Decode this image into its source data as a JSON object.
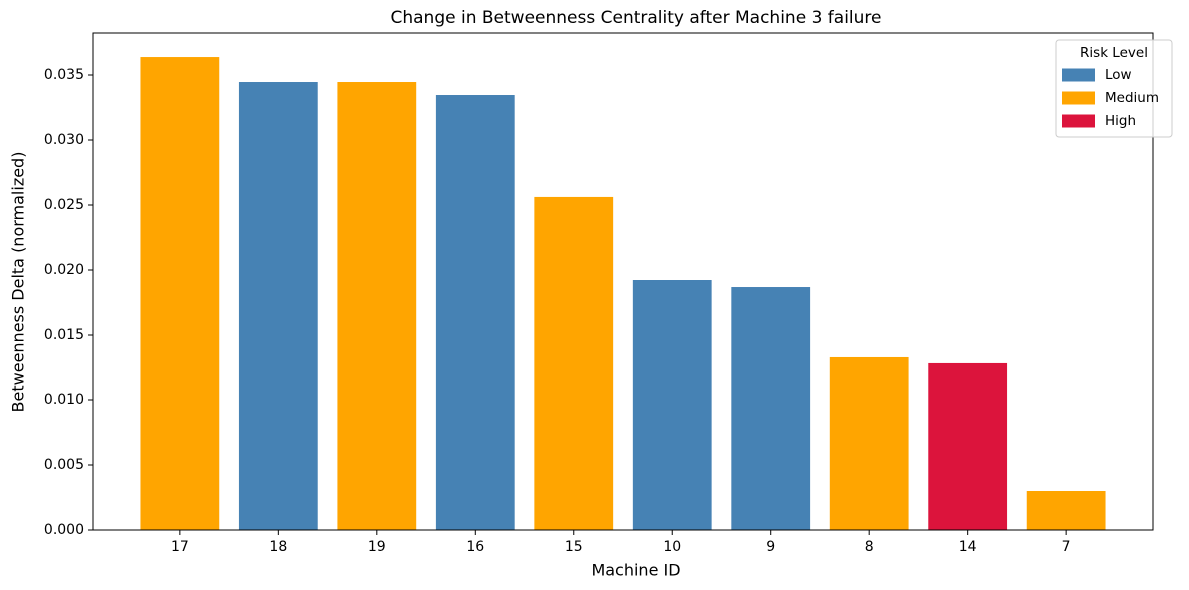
{
  "chart_data": {
    "type": "bar",
    "title": "Change in Betweenness Centrality after Machine 3 failure",
    "x_label": "Machine ID",
    "y_label": "Betweenness Delta (normalized)",
    "categories": [
      "17",
      "18",
      "19",
      "16",
      "15",
      "10",
      "9",
      "8",
      "14",
      "7"
    ],
    "series": [
      {
        "name": "Low",
        "color": "#4682b4",
        "values": [
          null,
          0.03446,
          null,
          0.03346,
          null,
          0.01923,
          0.01869,
          null,
          null,
          null
        ]
      },
      {
        "name": "Medium",
        "color": "#ffa500",
        "values": [
          0.03638,
          null,
          0.03446,
          null,
          0.02562,
          null,
          null,
          0.01331,
          null,
          0.003
        ]
      },
      {
        "name": "High",
        "color": "#dc143c",
        "values": [
          null,
          null,
          null,
          null,
          null,
          null,
          null,
          null,
          0.01285,
          null
        ]
      }
    ],
    "legend_title": "Risk Level",
    "legend_position": "upper right",
    "ylim": [
      0,
      0.03823
    ],
    "yticks": [
      {
        "value": 0,
        "label": "0.000"
      },
      {
        "value": 0.005,
        "label": "0.005"
      },
      {
        "value": 0.01,
        "label": "0.010"
      },
      {
        "value": 0.015,
        "label": "0.015"
      },
      {
        "value": 0.02,
        "label": "0.020"
      },
      {
        "value": 0.025,
        "label": "0.025"
      },
      {
        "value": 0.03,
        "label": "0.030"
      },
      {
        "value": 0.035,
        "label": "0.035"
      }
    ],
    "grid": false
  }
}
